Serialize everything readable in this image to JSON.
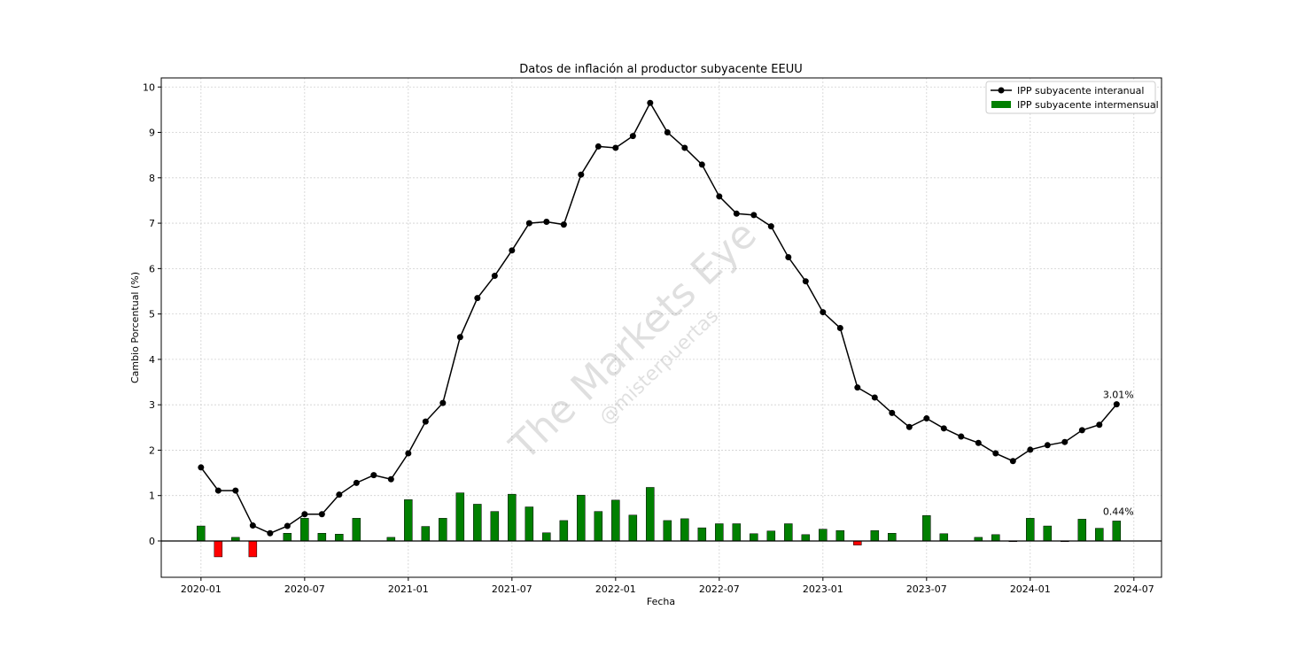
{
  "chart_data": {
    "type": "line+bar",
    "title": "Datos de inflación al productor subyacente EEUU",
    "xlabel": "Fecha",
    "ylabel": "Cambio Porcentual (%)",
    "ylim": [
      -0.8,
      10.2
    ],
    "yticks": [
      0,
      1,
      2,
      3,
      4,
      5,
      6,
      7,
      8,
      9,
      10
    ],
    "xticks": [
      "2020-01",
      "2020-07",
      "2021-01",
      "2021-07",
      "2022-01",
      "2022-07",
      "2023-01",
      "2023-07",
      "2024-01",
      "2024-07"
    ],
    "grid": true,
    "legend_position": "top-right",
    "x": [
      "2020-01",
      "2020-02",
      "2020-03",
      "2020-04",
      "2020-05",
      "2020-06",
      "2020-07",
      "2020-08",
      "2020-09",
      "2020-10",
      "2020-11",
      "2020-12",
      "2021-01",
      "2021-02",
      "2021-03",
      "2021-04",
      "2021-05",
      "2021-06",
      "2021-07",
      "2021-08",
      "2021-09",
      "2021-10",
      "2021-11",
      "2021-12",
      "2022-01",
      "2022-02",
      "2022-03",
      "2022-04",
      "2022-05",
      "2022-06",
      "2022-07",
      "2022-08",
      "2022-09",
      "2022-10",
      "2022-11",
      "2022-12",
      "2023-01",
      "2023-02",
      "2023-03",
      "2023-04",
      "2023-05",
      "2023-06",
      "2023-07",
      "2023-08",
      "2023-09",
      "2023-10",
      "2023-11",
      "2023-12",
      "2024-01",
      "2024-02",
      "2024-03",
      "2024-04",
      "2024-05",
      "2024-06"
    ],
    "series": [
      {
        "name": "IPP subyacente interanual",
        "kind": "line",
        "color": "#000000",
        "values": [
          1.62,
          1.11,
          1.11,
          0.34,
          0.17,
          0.33,
          0.59,
          0.59,
          1.02,
          1.28,
          1.45,
          1.36,
          1.93,
          2.63,
          3.04,
          4.49,
          5.35,
          5.84,
          6.4,
          7.0,
          7.03,
          6.97,
          8.07,
          8.69,
          8.66,
          8.92,
          9.65,
          9.0,
          8.66,
          8.29,
          7.59,
          7.21,
          7.18,
          6.93,
          6.25,
          5.72,
          5.04,
          4.69,
          3.38,
          3.16,
          2.82,
          2.51,
          2.7,
          2.48,
          2.3,
          2.16,
          1.93,
          1.76,
          2.01,
          2.11,
          2.18,
          2.44,
          2.56,
          3.01
        ]
      },
      {
        "name": "IPP subyacente intermensual",
        "kind": "bar",
        "color_positive": "#008000",
        "color_negative": "#ff0000",
        "values": [
          0.33,
          -0.35,
          0.08,
          -0.35,
          0.0,
          0.17,
          0.5,
          0.17,
          0.15,
          0.5,
          0.0,
          0.08,
          0.91,
          0.32,
          0.5,
          1.06,
          0.81,
          0.65,
          1.03,
          0.75,
          0.18,
          0.45,
          1.01,
          0.65,
          0.9,
          0.57,
          1.18,
          0.45,
          0.49,
          0.29,
          0.38,
          0.38,
          0.16,
          0.22,
          0.38,
          0.14,
          0.26,
          0.23,
          -0.09,
          0.23,
          0.17,
          0.0,
          0.56,
          0.16,
          0.0,
          0.08,
          0.14,
          -0.01,
          0.5,
          0.33,
          -0.01,
          0.48,
          0.28,
          0.44
        ]
      }
    ],
    "annotations": [
      {
        "text": "3.01%",
        "x": "2024-06",
        "series": "IPP subyacente interanual"
      },
      {
        "text": "0.44%",
        "x": "2024-06",
        "series": "IPP subyacente intermensual"
      }
    ],
    "watermark": {
      "text": "The Markets Eye",
      "subtext": "@misterpuertas"
    }
  }
}
